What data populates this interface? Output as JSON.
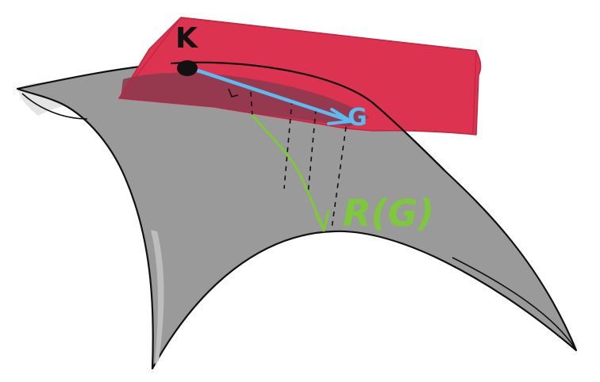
{
  "labels": {
    "point": "K",
    "tangent_vector": "G",
    "retraction": "R(G)"
  },
  "colors": {
    "plane_fill": "#dc3350",
    "plane_edge": "#c42440",
    "manifold_fill": "#9a9a9a",
    "manifold_light": "#e4e4e4",
    "outline": "#111111",
    "vector": "#5bbcf0",
    "curve": "#7ec83c"
  }
}
